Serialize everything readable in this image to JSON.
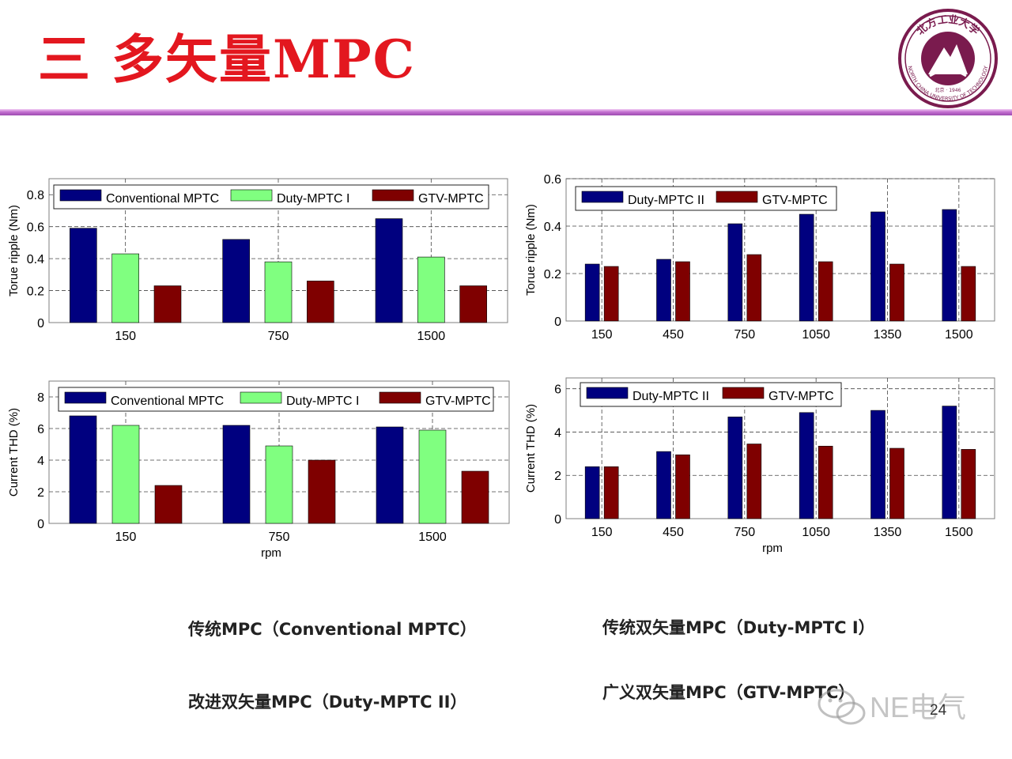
{
  "slide": {
    "title": "三  多矢量MPC",
    "page_number": "24",
    "watermark": "NE电气",
    "logo": {
      "text_top": "北方工业大学",
      "text_bottom": "NORTH CHINA UNIVERSITY OF TECHNOLOGY",
      "year": "北京 · 1946"
    }
  },
  "colors": {
    "title": "#e3171f",
    "conventional": "#00007f",
    "duty1": "#80ff80",
    "gtv": "#7f0000",
    "duty2": "#00007f",
    "logo": "#7a1b4e"
  },
  "descriptions": {
    "conv": "传统MPC（Conventional MPTC）",
    "duty1": "传统双矢量MPC（Duty-MPTC I）",
    "duty2": "改进双矢量MPC（Duty-MPTC II）",
    "gtv": "广义双矢量MPC（GTV-MPTC）"
  },
  "chart_data": [
    {
      "id": "c1",
      "type": "bar",
      "categories": [
        "150",
        "750",
        "1500"
      ],
      "series": [
        {
          "name": "Conventional MPTC",
          "color": "#00007f",
          "values": [
            0.59,
            0.52,
            0.65
          ]
        },
        {
          "name": "Duty-MPTC I",
          "color": "#80ff80",
          "values": [
            0.43,
            0.38,
            0.41
          ]
        },
        {
          "name": "GTV-MPTC",
          "color": "#7f0000",
          "values": [
            0.23,
            0.26,
            0.23
          ]
        }
      ],
      "ylabel": "Torue ripple (Nm)",
      "xlabel": "",
      "ylim": [
        0,
        0.9
      ],
      "yticks": [
        0,
        0.2,
        0.4,
        0.6,
        0.8
      ],
      "ytick_labels": [
        "0",
        "0.2",
        "0.4",
        "0.6",
        "0.8"
      ],
      "grid": true,
      "legend": "top"
    },
    {
      "id": "c2",
      "type": "bar",
      "categories": [
        "150",
        "450",
        "750",
        "1050",
        "1350",
        "1500"
      ],
      "series": [
        {
          "name": "Duty-MPTC II",
          "color": "#00007f",
          "values": [
            0.24,
            0.26,
            0.41,
            0.45,
            0.46,
            0.47
          ]
        },
        {
          "name": "GTV-MPTC",
          "color": "#7f0000",
          "values": [
            0.23,
            0.25,
            0.28,
            0.25,
            0.24,
            0.23
          ]
        }
      ],
      "ylabel": "Torue ripple (Nm)",
      "xlabel": "",
      "ylim": [
        0,
        0.6
      ],
      "yticks": [
        0,
        0.2,
        0.4,
        0.6
      ],
      "ytick_labels": [
        "0",
        "0.2",
        "0.4",
        "0.6"
      ],
      "grid": true,
      "legend": "top-left"
    },
    {
      "id": "c3",
      "type": "bar",
      "categories": [
        "150",
        "750",
        "1500"
      ],
      "series": [
        {
          "name": "Conventional MPTC",
          "color": "#00007f",
          "values": [
            6.8,
            6.2,
            6.1
          ]
        },
        {
          "name": "Duty-MPTC I",
          "color": "#80ff80",
          "values": [
            6.2,
            4.9,
            5.9
          ]
        },
        {
          "name": "GTV-MPTC",
          "color": "#7f0000",
          "values": [
            2.4,
            4.0,
            3.3
          ]
        }
      ],
      "ylabel": "Current THD (%)",
      "xlabel": "rpm",
      "ylim": [
        0,
        9
      ],
      "yticks": [
        0,
        2,
        4,
        6,
        8
      ],
      "ytick_labels": [
        "0",
        "2",
        "4",
        "6",
        "8"
      ],
      "grid": true,
      "legend": "top"
    },
    {
      "id": "c4",
      "type": "bar",
      "categories": [
        "150",
        "450",
        "750",
        "1050",
        "1350",
        "1500"
      ],
      "series": [
        {
          "name": "Duty-MPTC II",
          "color": "#00007f",
          "values": [
            2.4,
            3.1,
            4.7,
            4.9,
            5.0,
            5.2
          ]
        },
        {
          "name": "GTV-MPTC",
          "color": "#7f0000",
          "values": [
            2.4,
            2.95,
            3.45,
            3.35,
            3.25,
            3.2
          ]
        }
      ],
      "ylabel": "Current THD (%)",
      "xlabel": "rpm",
      "ylim": [
        0,
        6.5
      ],
      "yticks": [
        0,
        2,
        4,
        6
      ],
      "ytick_labels": [
        "0",
        "2",
        "4",
        "6"
      ],
      "grid": true,
      "legend": "top-left"
    }
  ]
}
